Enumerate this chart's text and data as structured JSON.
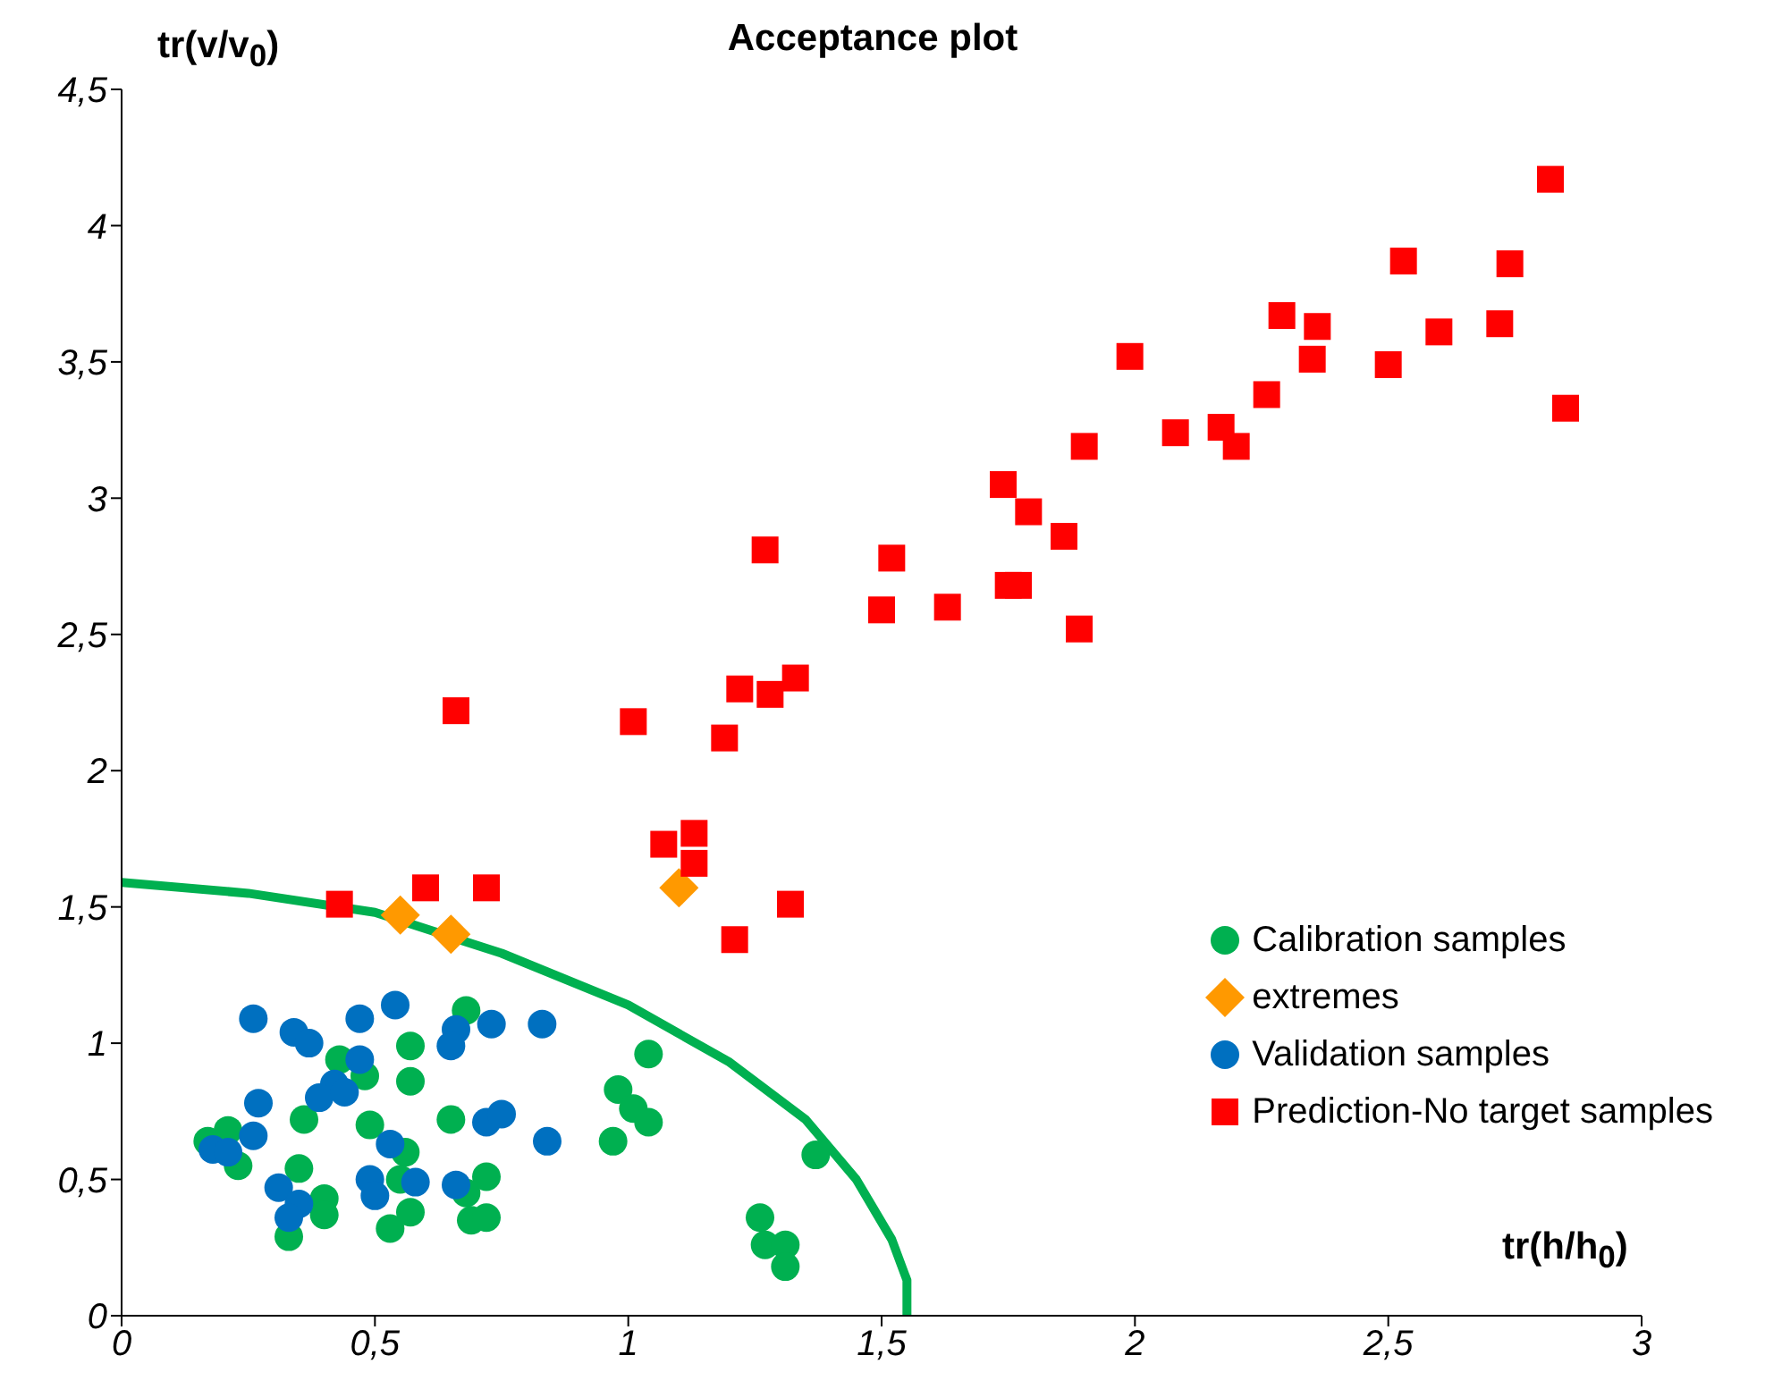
{
  "chart_data": {
    "type": "scatter",
    "title": "Acceptance plot",
    "xlabel": "tr(h/h$_{0}$)",
    "ylabel": "tr(v/v$_{0}$)",
    "xlim": [
      0,
      3
    ],
    "xticks": [
      0,
      {
        "value": 0.5,
        "label": "0,5"
      },
      1,
      {
        "value": 1.5,
        "label": "1,5"
      },
      2,
      {
        "value": 2.5,
        "label": "2,5"
      },
      3
    ],
    "ylim": [
      0,
      4.5
    ],
    "yticks": [
      0,
      {
        "value": 0.5,
        "label": "0,5"
      },
      1,
      {
        "value": 1.5,
        "label": "1,5"
      },
      2,
      {
        "value": 2.5,
        "label": "2,5"
      },
      3,
      {
        "value": 3.5,
        "label": "3,5"
      },
      4,
      {
        "value": 4.5,
        "label": "4,5"
      }
    ],
    "legend": "bottom right",
    "series": [
      {
        "type": "line",
        "color": "#00b050",
        "line_style": "solid",
        "marker": "none",
        "x": [
          0,
          0.25,
          0.5,
          0.75,
          1.0,
          1.2,
          1.35,
          1.45,
          1.52,
          1.55,
          1.55
        ],
        "values": [
          1.59,
          1.55,
          1.48,
          1.33,
          1.14,
          0.93,
          0.72,
          0.5,
          0.28,
          0.13,
          0
        ]
      },
      {
        "name": "Calibration samples",
        "color": "#00b050",
        "marker": "circle",
        "x": [
          0.68,
          0.57,
          0.57,
          0.43,
          0.48,
          0.36,
          0.65,
          0.49,
          0.21,
          0.23,
          0.17,
          0.35,
          0.56,
          0.4,
          0.4,
          0.33,
          0.53,
          0.57,
          0.55,
          0.68,
          0.72,
          0.69,
          0.72,
          1.04,
          0.98,
          1.01,
          1.04,
          0.97,
          1.37,
          1.26,
          1.27,
          1.31,
          1.31
        ],
        "values": [
          1.12,
          0.99,
          0.86,
          0.94,
          0.88,
          0.72,
          0.72,
          0.7,
          0.68,
          0.55,
          0.64,
          0.54,
          0.6,
          0.43,
          0.37,
          0.29,
          0.32,
          0.38,
          0.5,
          0.45,
          0.51,
          0.35,
          0.36,
          0.96,
          0.83,
          0.76,
          0.71,
          0.64,
          0.59,
          0.36,
          0.26,
          0.26,
          0.18
        ]
      },
      {
        "name": "extremes",
        "color": "#ff9900",
        "marker": "diamond",
        "x": [
          0.55,
          0.65,
          1.1
        ],
        "values": [
          1.47,
          1.4,
          1.57
        ]
      },
      {
        "name": "Validation samples",
        "color": "#0070c0",
        "marker": "circle",
        "x": [
          0.26,
          0.34,
          0.37,
          0.47,
          0.54,
          0.66,
          0.65,
          0.73,
          0.83,
          0.47,
          0.42,
          0.39,
          0.44,
          0.27,
          0.72,
          0.75,
          0.84,
          0.26,
          0.18,
          0.21,
          0.53,
          0.31,
          0.35,
          0.33,
          0.49,
          0.5,
          0.58,
          0.66
        ],
        "values": [
          1.09,
          1.04,
          1.0,
          1.09,
          1.14,
          1.05,
          0.99,
          1.07,
          1.07,
          0.94,
          0.85,
          0.8,
          0.82,
          0.78,
          0.71,
          0.74,
          0.64,
          0.66,
          0.61,
          0.6,
          0.63,
          0.47,
          0.41,
          0.36,
          0.5,
          0.44,
          0.49,
          0.48
        ]
      },
      {
        "name": "Prediction-No target samples",
        "color": "#ff0000",
        "marker": "square",
        "x": [
          0.43,
          0.6,
          0.72,
          0.66,
          1.01,
          1.07,
          1.13,
          1.13,
          1.21,
          1.19,
          1.22,
          1.28,
          1.33,
          1.27,
          1.32,
          1.5,
          1.52,
          1.63,
          1.74,
          1.75,
          1.77,
          1.79,
          1.86,
          1.89,
          1.9,
          1.99,
          2.08,
          2.17,
          2.2,
          2.26,
          2.29,
          2.35,
          2.36,
          2.5,
          2.53,
          2.6,
          2.72,
          2.74,
          2.82,
          2.85
        ],
        "values": [
          1.51,
          1.57,
          1.57,
          2.22,
          2.18,
          1.73,
          1.77,
          1.66,
          1.38,
          2.12,
          2.3,
          2.28,
          2.34,
          2.81,
          1.51,
          2.59,
          2.78,
          2.6,
          3.05,
          2.68,
          2.68,
          2.95,
          2.86,
          2.52,
          3.19,
          3.52,
          3.24,
          3.26,
          3.19,
          3.38,
          3.67,
          3.51,
          3.63,
          3.49,
          3.87,
          3.61,
          3.64,
          3.86,
          4.17,
          3.33
        ]
      }
    ]
  }
}
